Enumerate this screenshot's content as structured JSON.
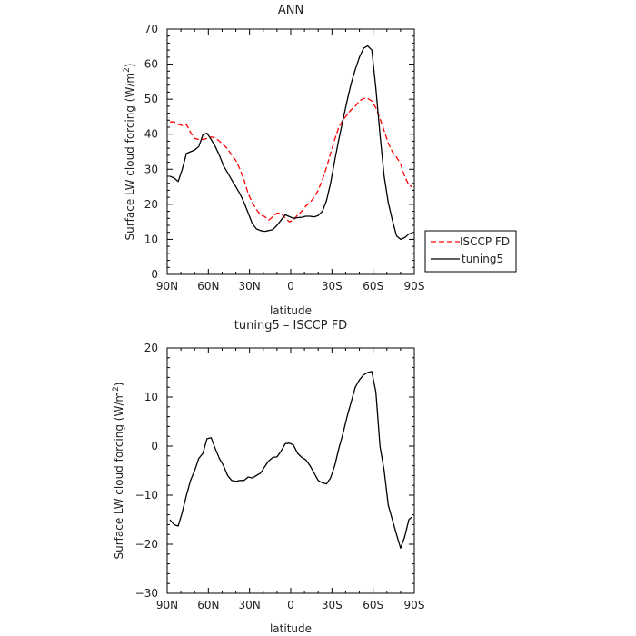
{
  "chart_data": [
    {
      "type": "line",
      "title": "ANN",
      "xlabel": "latitude",
      "ylabel_main": "Surface LW cloud forcing (W/m",
      "ylabel_sup": "2",
      "ylabel_tail": ")",
      "xlim": [
        90,
        -90
      ],
      "ylim": [
        0,
        70
      ],
      "xticks": [
        {
          "value": 90,
          "label": "90N"
        },
        {
          "value": 60,
          "label": "60N"
        },
        {
          "value": 30,
          "label": "30N"
        },
        {
          "value": 0,
          "label": "0"
        },
        {
          "value": -30,
          "label": "30S"
        },
        {
          "value": -60,
          "label": "60S"
        },
        {
          "value": -90,
          "label": "90S"
        }
      ],
      "yticks": [
        0,
        10,
        20,
        30,
        40,
        50,
        60,
        70
      ],
      "grid": false,
      "legend": "right",
      "series": [
        {
          "name": "ISCCP FD",
          "color": "#ff0000",
          "dash": true,
          "x": [
            88,
            85,
            82,
            79,
            76,
            73,
            70,
            67,
            64,
            61,
            58,
            55,
            52,
            49,
            46,
            43,
            40,
            37,
            34,
            31,
            28,
            25,
            22,
            19,
            16,
            13,
            10,
            7,
            4,
            1,
            -2,
            -5,
            -8,
            -11,
            -14,
            -17,
            -20,
            -23,
            -26,
            -29,
            -32,
            -35,
            -38,
            -41,
            -44,
            -47,
            -50,
            -53,
            -56,
            -59,
            -62,
            -65,
            -68,
            -71,
            -74,
            -77,
            -80,
            -83,
            -86,
            -88
          ],
          "y": [
            43.5,
            43.5,
            42.8,
            42.5,
            42.8,
            40.5,
            38.8,
            38.5,
            38.5,
            38.8,
            39.2,
            39.0,
            38.0,
            37.0,
            35.8,
            34.0,
            32.5,
            30.0,
            27.0,
            23.0,
            20.5,
            18.5,
            17.0,
            16.5,
            15.5,
            16.5,
            17.5,
            17.5,
            16.0,
            15.0,
            15.5,
            17.0,
            18.0,
            19.5,
            20.5,
            22.0,
            24.0,
            27.0,
            30.5,
            34.5,
            38.5,
            42.0,
            44.0,
            45.5,
            47.0,
            48.0,
            49.5,
            50.2,
            50.2,
            49.5,
            47.5,
            44.5,
            41.0,
            37.5,
            35.0,
            33.5,
            31.5,
            28.0,
            25.5,
            25.0
          ]
        },
        {
          "name": "tuning5",
          "color": "#000000",
          "dash": false,
          "x": [
            88,
            85,
            82,
            79,
            76,
            73,
            70,
            67,
            64,
            61,
            58,
            55,
            52,
            49,
            46,
            43,
            40,
            37,
            34,
            31,
            28,
            25,
            22,
            19,
            16,
            13,
            10,
            7,
            4,
            1,
            -2,
            -5,
            -8,
            -11,
            -14,
            -17,
            -20,
            -23,
            -26,
            -29,
            -32,
            -35,
            -38,
            -41,
            -44,
            -47,
            -50,
            -53,
            -56,
            -59,
            -62,
            -65,
            -68,
            -71,
            -74,
            -77,
            -80,
            -83,
            -86,
            -88
          ],
          "y": [
            28.0,
            27.5,
            26.5,
            30.0,
            34.5,
            35.0,
            35.5,
            36.5,
            39.8,
            40.3,
            38.5,
            36.5,
            34.0,
            31.0,
            29.0,
            27.0,
            25.0,
            23.0,
            20.5,
            17.5,
            14.5,
            13.0,
            12.5,
            12.3,
            12.5,
            12.8,
            14.0,
            15.5,
            17.0,
            16.5,
            16.0,
            16.2,
            16.3,
            16.6,
            16.6,
            16.4,
            16.8,
            18.0,
            21.0,
            26.0,
            32.5,
            38.5,
            44.0,
            49.5,
            54.5,
            58.5,
            62.0,
            64.5,
            65.2,
            64.0,
            53.0,
            40.0,
            28.0,
            20.5,
            15.5,
            11.0,
            10.0,
            10.5,
            11.5,
            11.8
          ]
        }
      ]
    },
    {
      "type": "line",
      "title": "tuning5 – ISCCP FD",
      "xlabel": "latitude",
      "ylabel_main": "Surface LW cloud forcing (W/m",
      "ylabel_sup": "2",
      "ylabel_tail": ")",
      "xlim": [
        90,
        -90
      ],
      "ylim": [
        -30,
        20
      ],
      "xticks": [
        {
          "value": 90,
          "label": "90N"
        },
        {
          "value": 60,
          "label": "60N"
        },
        {
          "value": 30,
          "label": "30N"
        },
        {
          "value": 0,
          "label": "0"
        },
        {
          "value": -30,
          "label": "30S"
        },
        {
          "value": -60,
          "label": "60S"
        },
        {
          "value": -90,
          "label": "90S"
        }
      ],
      "yticks": [
        -30,
        -20,
        -10,
        0,
        10,
        20
      ],
      "grid": false,
      "legend": "none",
      "series": [
        {
          "color": "#000000",
          "dash": false,
          "x": [
            88,
            85,
            82,
            79,
            76,
            73,
            70,
            67,
            64,
            61,
            58,
            55,
            52,
            49,
            46,
            43,
            40,
            37,
            34,
            31,
            28,
            25,
            22,
            19,
            16,
            13,
            10,
            7,
            4,
            1,
            -2,
            -5,
            -8,
            -11,
            -14,
            -17,
            -20,
            -23,
            -26,
            -29,
            -32,
            -35,
            -38,
            -41,
            -44,
            -47,
            -50,
            -53,
            -56,
            -59,
            -62,
            -65,
            -68,
            -71,
            -74,
            -77,
            -80,
            -83,
            -86,
            -88
          ],
          "y": [
            -15.0,
            -16.0,
            -16.3,
            -13.5,
            -10.0,
            -7.0,
            -5.0,
            -2.5,
            -1.5,
            1.5,
            1.7,
            -0.5,
            -2.5,
            -4.0,
            -6.0,
            -7.0,
            -7.2,
            -7.0,
            -7.0,
            -6.3,
            -6.5,
            -6.0,
            -5.5,
            -4.2,
            -3.0,
            -2.3,
            -2.2,
            -1.0,
            0.5,
            0.6,
            0.2,
            -1.5,
            -2.3,
            -2.8,
            -4.0,
            -5.5,
            -7.0,
            -7.5,
            -7.7,
            -6.5,
            -4.0,
            -0.5,
            2.5,
            6.0,
            9.0,
            12.0,
            13.5,
            14.5,
            15.0,
            15.2,
            11.0,
            0.0,
            -5.0,
            -12.0,
            -15.0,
            -18.0,
            -20.8,
            -18.5,
            -15.0,
            -14.5
          ]
        }
      ]
    }
  ]
}
